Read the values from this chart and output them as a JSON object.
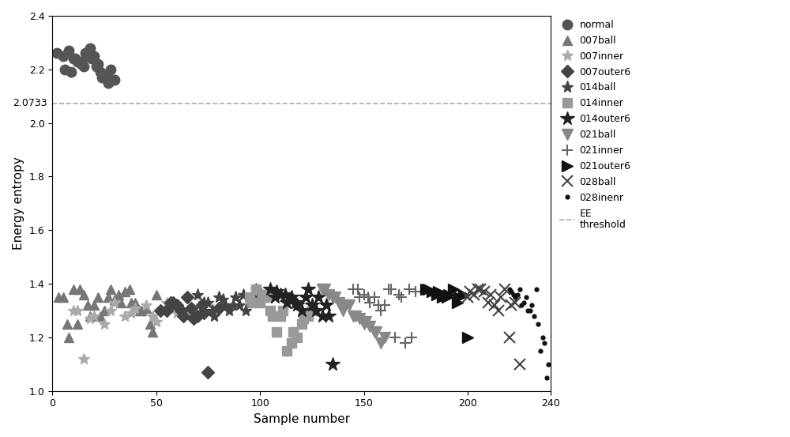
{
  "title": "",
  "xlabel": "Sample number",
  "ylabel": "Energy entropy",
  "xlim": [
    0,
    240
  ],
  "ylim": [
    1.0,
    2.4
  ],
  "threshold": 2.0733,
  "series": [
    {
      "label": "normal",
      "marker": "o",
      "color": "#555555",
      "markersize": 9,
      "x": [
        2,
        5,
        8,
        10,
        13,
        16,
        18,
        20,
        22,
        6,
        9,
        12,
        14,
        17,
        19,
        21,
        24,
        26,
        28,
        11,
        15,
        23,
        27,
        30
      ],
      "y": [
        2.26,
        2.25,
        2.27,
        2.24,
        2.23,
        2.26,
        2.28,
        2.25,
        2.22,
        2.2,
        2.19,
        2.23,
        2.22,
        2.25,
        2.24,
        2.21,
        2.17,
        2.18,
        2.2,
        2.24,
        2.21,
        2.19,
        2.15,
        2.16
      ]
    },
    {
      "label": "007ball",
      "marker": "^",
      "color": "#777777",
      "markersize": 9,
      "x": [
        5,
        10,
        15,
        20,
        25,
        30,
        35,
        40,
        45,
        50,
        8,
        12,
        18,
        22,
        28,
        32,
        38,
        42,
        48,
        3,
        7,
        13,
        17,
        23,
        27,
        33,
        37,
        43,
        47
      ],
      "y": [
        1.35,
        1.38,
        1.36,
        1.32,
        1.3,
        1.34,
        1.37,
        1.33,
        1.31,
        1.36,
        1.2,
        1.25,
        1.28,
        1.35,
        1.38,
        1.36,
        1.33,
        1.3,
        1.22,
        1.35,
        1.25,
        1.38,
        1.32,
        1.28,
        1.35,
        1.33,
        1.38,
        1.3,
        1.25
      ]
    },
    {
      "label": "007inner",
      "marker": "*",
      "color": "#aaaaaa",
      "markersize": 10,
      "x": [
        10,
        20,
        30,
        40,
        50,
        60,
        15,
        25,
        35,
        45,
        55,
        65,
        12,
        18,
        28,
        38,
        48,
        58
      ],
      "y": [
        1.3,
        1.28,
        1.33,
        1.31,
        1.26,
        1.29,
        1.12,
        1.25,
        1.28,
        1.32,
        1.33,
        1.3,
        1.3,
        1.27,
        1.3,
        1.29,
        1.28,
        1.31
      ]
    },
    {
      "label": "007outer6",
      "marker": "D",
      "color": "#444444",
      "markersize": 8,
      "x": [
        55,
        60,
        65,
        70,
        75,
        80,
        58,
        62,
        68,
        72,
        52,
        57,
        63,
        67,
        73
      ],
      "y": [
        1.3,
        1.32,
        1.35,
        1.28,
        1.07,
        1.31,
        1.33,
        1.3,
        1.27,
        1.32,
        1.3,
        1.33,
        1.28,
        1.31,
        1.29
      ]
    },
    {
      "label": "014ball",
      "marker": "*",
      "color": "#444444",
      "markersize": 11,
      "x": [
        70,
        75,
        80,
        85,
        90,
        95,
        100,
        73,
        78,
        83,
        88,
        93,
        98,
        72,
        77,
        82,
        87,
        92,
        97
      ],
      "y": [
        1.36,
        1.33,
        1.35,
        1.3,
        1.32,
        1.34,
        1.37,
        1.33,
        1.28,
        1.32,
        1.35,
        1.3,
        1.38,
        1.32,
        1.3,
        1.34,
        1.32,
        1.36,
        1.35
      ]
    },
    {
      "label": "014inner",
      "marker": "s",
      "color": "#999999",
      "markersize": 9,
      "x": [
        95,
        100,
        105,
        110,
        115,
        120,
        125,
        98,
        103,
        108,
        113,
        118,
        123,
        96,
        101,
        106,
        111,
        116,
        121
      ],
      "y": [
        1.35,
        1.33,
        1.3,
        1.28,
        1.18,
        1.25,
        1.3,
        1.38,
        1.35,
        1.22,
        1.15,
        1.2,
        1.28,
        1.33,
        1.36,
        1.28,
        1.3,
        1.22,
        1.27
      ]
    },
    {
      "label": "014outer6",
      "marker": "*",
      "color": "#222222",
      "markersize": 13,
      "x": [
        105,
        110,
        115,
        120,
        125,
        130,
        135,
        108,
        113,
        118,
        123,
        128,
        133,
        107,
        112,
        117,
        122,
        127,
        132
      ],
      "y": [
        1.38,
        1.36,
        1.35,
        1.3,
        1.32,
        1.28,
        1.1,
        1.37,
        1.33,
        1.32,
        1.38,
        1.35,
        1.28,
        1.35,
        1.36,
        1.33,
        1.35,
        1.3,
        1.32
      ]
    },
    {
      "label": "021ball",
      "marker": "v",
      "color": "#888888",
      "markersize": 10,
      "x": [
        130,
        135,
        140,
        145,
        150,
        155,
        160,
        133,
        138,
        143,
        148,
        153,
        158,
        131,
        136,
        141,
        146,
        151,
        156
      ],
      "y": [
        1.38,
        1.35,
        1.3,
        1.28,
        1.25,
        1.22,
        1.2,
        1.36,
        1.33,
        1.32,
        1.27,
        1.24,
        1.18,
        1.38,
        1.35,
        1.32,
        1.28,
        1.26,
        1.22
      ]
    },
    {
      "label": "021inner",
      "marker": "+",
      "color": "#666666",
      "markersize": 10,
      "x": [
        145,
        150,
        155,
        160,
        165,
        170,
        175,
        148,
        153,
        158,
        163,
        168,
        173,
        147,
        152,
        157,
        162,
        167,
        172
      ],
      "y": [
        1.38,
        1.36,
        1.35,
        1.32,
        1.2,
        1.18,
        1.37,
        1.35,
        1.33,
        1.3,
        1.38,
        1.35,
        1.2,
        1.38,
        1.35,
        1.32,
        1.38,
        1.36,
        1.38
      ]
    },
    {
      "label": "021outer6",
      "marker": ">",
      "color": "#111111",
      "markersize": 10,
      "x": [
        180,
        185,
        190,
        195,
        200,
        183,
        188,
        193,
        198,
        181,
        186,
        191,
        196
      ],
      "y": [
        1.38,
        1.36,
        1.35,
        1.33,
        1.2,
        1.37,
        1.35,
        1.38,
        1.36,
        1.38,
        1.37,
        1.36,
        1.35
      ]
    },
    {
      "label": "028ball",
      "marker": "x",
      "color": "#444444",
      "markersize": 10,
      "x": [
        200,
        205,
        210,
        215,
        220,
        225,
        203,
        208,
        213,
        218,
        223,
        201,
        206,
        211,
        216,
        221
      ],
      "y": [
        1.35,
        1.38,
        1.33,
        1.3,
        1.2,
        1.1,
        1.36,
        1.37,
        1.32,
        1.38,
        1.33,
        1.37,
        1.38,
        1.36,
        1.35,
        1.32
      ]
    },
    {
      "label": "028inenr",
      "marker": ".",
      "color": "#111111",
      "markersize": 7,
      "x": [
        220,
        223,
        226,
        229,
        232,
        235,
        238,
        221,
        224,
        227,
        230,
        233,
        236,
        239,
        222,
        225,
        228,
        231,
        234,
        237
      ],
      "y": [
        1.38,
        1.35,
        1.32,
        1.3,
        1.28,
        1.15,
        1.05,
        1.37,
        1.36,
        1.33,
        1.3,
        1.38,
        1.2,
        1.1,
        1.36,
        1.38,
        1.35,
        1.32,
        1.25,
        1.18
      ]
    }
  ]
}
